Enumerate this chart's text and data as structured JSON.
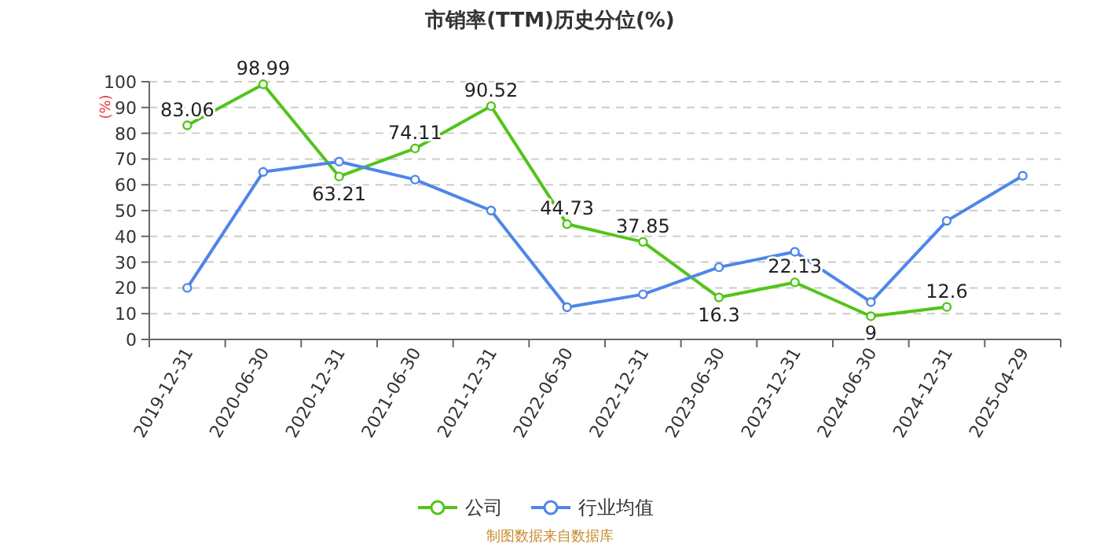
{
  "chart_data": {
    "type": "line",
    "title": "市销率(TTM)历史分位(%)",
    "ylabel": "(%)",
    "categories": [
      "2019-12-31",
      "2020-06-30",
      "2020-12-31",
      "2021-06-30",
      "2021-12-31",
      "2022-06-30",
      "2022-12-31",
      "2023-06-30",
      "2023-12-31",
      "2024-06-30",
      "2024-12-31",
      "2025-04-29"
    ],
    "series": [
      {
        "name": "公司",
        "color": "#52c41a",
        "values": [
          83.06,
          98.99,
          63.21,
          74.11,
          90.52,
          44.73,
          37.85,
          16.3,
          22.13,
          9,
          12.6,
          null
        ],
        "value_labels": [
          "83.06",
          "98.99",
          "63.21",
          "74.11",
          "90.52",
          "44.73",
          "37.85",
          "16.3",
          "22.13",
          "9",
          "12.6",
          null
        ]
      },
      {
        "name": "行业均值",
        "color": "#4e86e8",
        "values": [
          20,
          65,
          69,
          62,
          50,
          12.5,
          17.5,
          28,
          34,
          14.5,
          46,
          63.5
        ]
      }
    ],
    "ylim": [
      0,
      100
    ],
    "yticks": [
      0,
      10,
      20,
      30,
      40,
      50,
      60,
      70,
      80,
      90,
      100
    ],
    "grid": "y",
    "legend": "bottom",
    "marker": "circle",
    "line_style": "solid",
    "annotations": [
      "制图数据来自数据库"
    ]
  }
}
